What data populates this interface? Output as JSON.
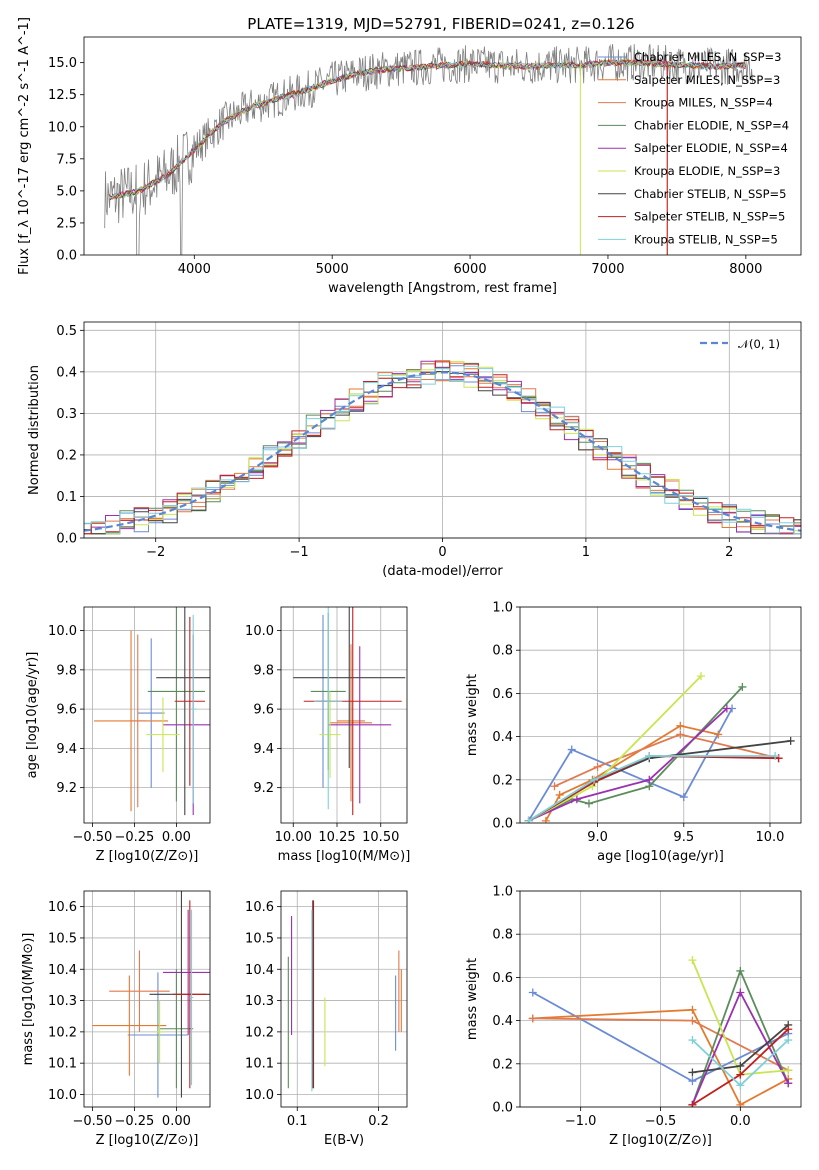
{
  "figure": {
    "title": "PLATE=1319, MJD=52791, FIBERID=0241, z=0.126"
  },
  "series": [
    {
      "name": "Chabrier MILES, N_SSP=3",
      "color": "#6c8bd5"
    },
    {
      "name": "Salpeter MILES, N_SSP=3",
      "color": "#e47a30"
    },
    {
      "name": "Kroupa MILES, N_SSP=4",
      "color": "#e07a4f"
    },
    {
      "name": "Chabrier ELODIE, N_SSP=4",
      "color": "#5b8c5a"
    },
    {
      "name": "Salpeter ELODIE, N_SSP=4",
      "color": "#9b30b0"
    },
    {
      "name": "Kroupa ELODIE, N_SSP=3",
      "color": "#c8e650"
    },
    {
      "name": "Chabrier STELIB, N_SSP=5",
      "color": "#444444"
    },
    {
      "name": "Salpeter STELIB, N_SSP=5",
      "color": "#c02020"
    },
    {
      "name": "Kroupa STELIB, N_SSP=5",
      "color": "#7fd0d8"
    }
  ],
  "chart_data": [
    {
      "id": "spectrum",
      "type": "line",
      "title": "PLATE=1319, MJD=52791, FIBERID=0241, z=0.126",
      "xlabel": "wavelength [Angstrom, rest frame]",
      "ylabel": "Flux [f_λ 10^-17 erg cm^-2 s^-1 A^-1]",
      "xlim": [
        3200,
        8400
      ],
      "ylim": [
        0,
        17
      ],
      "xticks": [
        "4000",
        "5000",
        "6000",
        "7000",
        "8000"
      ],
      "yticks": [
        "0.0",
        "2.5",
        "5.0",
        "7.5",
        "10.0",
        "12.5",
        "15.0"
      ],
      "legend": {
        "placement": "top-right",
        "entries": [
          "Chabrier MILES, N_SSP=3",
          "Salpeter MILES, N_SSP=3",
          "Kroupa MILES, N_SSP=4",
          "Chabrier ELODIE, N_SSP=4",
          "Salpeter ELODIE, N_SSP=4",
          "Kroupa ELODIE, N_SSP=3",
          "Chabrier STELIB, N_SSP=5",
          "Salpeter STELIB, N_SSP=5",
          "Kroupa STELIB, N_SSP=5"
        ]
      },
      "data_x": [
        3400,
        3600,
        3800,
        4000,
        4200,
        4400,
        4600,
        4800,
        5000,
        5200,
        5400,
        5600,
        5800,
        6000,
        6200,
        6400,
        6600,
        6800,
        7000,
        7200,
        7400,
        7600,
        7800,
        8000
      ],
      "model_y": [
        4.5,
        5.0,
        6.2,
        8.2,
        10.3,
        11.5,
        12.2,
        12.8,
        13.6,
        14.2,
        14.5,
        14.6,
        14.8,
        14.9,
        14.8,
        14.7,
        14.8,
        14.8,
        15.0,
        15.0,
        14.9,
        14.8,
        14.7,
        14.8
      ],
      "data_noise_amplitude": 1.5
    },
    {
      "id": "residual-histogram",
      "type": "histogram",
      "xlabel": "(data-model)/error",
      "ylabel": "Normed distribution",
      "xlim": [
        -2.5,
        2.5
      ],
      "ylim": [
        0,
        0.52
      ],
      "xticks": [
        "−2",
        "−1",
        "0",
        "1",
        "2"
      ],
      "yticks": [
        "0.0",
        "0.1",
        "0.2",
        "0.3",
        "0.4",
        "0.5"
      ],
      "grid": true,
      "legend": {
        "placement": "top-right",
        "entries": [
          "𝒩(0, 1)"
        ]
      },
      "bin_width": 0.1,
      "reference_curve": "normal(0,1)"
    },
    {
      "id": "age-vs-Z",
      "type": "errorbar",
      "xlabel": "Z [log10(Z/Z⊙)]",
      "ylabel": "age [log10(age/yr)]",
      "xlim": [
        -0.55,
        0.2
      ],
      "ylim": [
        9.02,
        10.12
      ],
      "xticks": [
        "−0.50",
        "−0.25",
        "0.00"
      ],
      "yticks": [
        "9.2",
        "9.4",
        "9.6",
        "9.8",
        "10.0"
      ],
      "grid": true,
      "points": [
        {
          "x": -0.15,
          "y": 9.58,
          "xerr": 0.08,
          "yerr": 0.38
        },
        {
          "x": -0.27,
          "y": 9.54,
          "xerr": 0.22,
          "yerr": 0.46
        },
        {
          "x": -0.23,
          "y": 9.54,
          "xerr": 0.05,
          "yerr": 0.44
        },
        {
          "x": 0.0,
          "y": 9.69,
          "xerr": 0.17,
          "yerr": 0.56
        },
        {
          "x": 0.1,
          "y": 9.52,
          "xerr": 0.18,
          "yerr": 0.46
        },
        {
          "x": -0.08,
          "y": 9.47,
          "xerr": 0.1,
          "yerr": 0.19
        },
        {
          "x": 0.05,
          "y": 9.76,
          "xerr": 0.17,
          "yerr": 0.7
        },
        {
          "x": 0.08,
          "y": 9.64,
          "xerr": 0.09,
          "yerr": 0.43
        },
        {
          "x": 0.1,
          "y": 9.6,
          "xerr": 0.02,
          "yerr": 0.48
        }
      ]
    },
    {
      "id": "age-vs-mass",
      "type": "errorbar",
      "xlabel": "mass [log10(M/M⊙)]",
      "ylabel": "",
      "xlim": [
        9.93,
        10.65
      ],
      "ylim": [
        9.02,
        10.12
      ],
      "xticks": [
        "10.00",
        "10.25",
        "10.50"
      ],
      "yticks": [
        "9.2",
        "9.4",
        "9.6",
        "9.8",
        "10.0"
      ],
      "grid": true,
      "points": [
        {
          "x": 10.17,
          "y": 9.64,
          "xerr": 0.04,
          "yerr": 0.44
        },
        {
          "x": 10.33,
          "y": 9.54,
          "xerr": 0.08,
          "yerr": 0.36
        },
        {
          "x": 10.33,
          "y": 9.53,
          "xerr": 0.12,
          "yerr": 0.4
        },
        {
          "x": 10.2,
          "y": 9.69,
          "xerr": 0.1,
          "yerr": 0.4
        },
        {
          "x": 10.38,
          "y": 9.52,
          "xerr": 0.18,
          "yerr": 0.4
        },
        {
          "x": 10.21,
          "y": 9.47,
          "xerr": 0.06,
          "yerr": 0.22
        },
        {
          "x": 10.32,
          "y": 9.76,
          "xerr": 0.32,
          "yerr": 0.46
        },
        {
          "x": 10.34,
          "y": 9.64,
          "xerr": 0.28,
          "yerr": 0.58
        },
        {
          "x": 10.2,
          "y": 9.64,
          "xerr": 0.08,
          "yerr": 0.55
        }
      ]
    },
    {
      "id": "mass-weight-vs-age",
      "type": "line",
      "xlabel": "age [log10(age/yr)]",
      "ylabel": "mass weight",
      "xlim": [
        8.55,
        10.18
      ],
      "ylim": [
        0,
        1
      ],
      "xticks": [
        "9.0",
        "9.5",
        "10.0"
      ],
      "yticks": [
        "0.0",
        "0.2",
        "0.4",
        "0.6",
        "0.8",
        "1.0"
      ],
      "grid": true,
      "series": [
        {
          "x": [
            8.6,
            8.85,
            9.5,
            9.78
          ],
          "y": [
            0.01,
            0.34,
            0.12,
            0.53
          ]
        },
        {
          "x": [
            8.7,
            8.78,
            8.97,
            9.48,
            9.7
          ],
          "y": [
            0.01,
            0.13,
            0.2,
            0.45,
            0.41
          ]
        },
        {
          "x": [
            8.75,
            9.0,
            9.48,
            10.05
          ],
          "y": [
            0.17,
            0.26,
            0.41,
            0.3
          ]
        },
        {
          "x": [
            8.6,
            8.85,
            8.95,
            9.3,
            9.84
          ],
          "y": [
            0.01,
            0.11,
            0.09,
            0.17,
            0.63
          ]
        },
        {
          "x": [
            8.6,
            8.88,
            9.3,
            9.75
          ],
          "y": [
            0.01,
            0.11,
            0.2,
            0.53
          ]
        },
        {
          "x": [
            8.6,
            8.97,
            9.6
          ],
          "y": [
            0.01,
            0.17,
            0.68
          ]
        },
        {
          "x": [
            8.6,
            8.98,
            9.3,
            10.12
          ],
          "y": [
            0.01,
            0.19,
            0.3,
            0.38
          ]
        },
        {
          "x": [
            8.6,
            8.98,
            9.3,
            10.05
          ],
          "y": [
            0.01,
            0.19,
            0.31,
            0.3
          ]
        },
        {
          "x": [
            8.6,
            8.98,
            9.3,
            10.03
          ],
          "y": [
            0.01,
            0.2,
            0.31,
            0.31
          ]
        }
      ]
    },
    {
      "id": "mass-vs-Z",
      "type": "errorbar",
      "xlabel": "Z [log10(Z/Z⊙)]",
      "ylabel": "mass [log10(M/M⊙)]",
      "xlim": [
        -0.55,
        0.2
      ],
      "ylim": [
        9.96,
        10.65
      ],
      "xticks": [
        "−0.50",
        "−0.25",
        "0.00"
      ],
      "yticks": [
        "10.0",
        "10.1",
        "10.2",
        "10.3",
        "10.4",
        "10.5",
        "10.6"
      ],
      "grid": true,
      "points": [
        {
          "x": -0.11,
          "y": 10.19,
          "xerr": 0.18,
          "yerr": 0.2
        },
        {
          "x": -0.28,
          "y": 10.22,
          "xerr": 0.22,
          "yerr": 0.16
        },
        {
          "x": -0.22,
          "y": 10.33,
          "xerr": 0.18,
          "yerr": 0.13
        },
        {
          "x": 0.0,
          "y": 10.21,
          "xerr": 0.1,
          "yerr": 0.19
        },
        {
          "x": 0.07,
          "y": 10.39,
          "xerr": 0.15,
          "yerr": 0.2
        },
        {
          "x": -0.1,
          "y": 10.2,
          "xerr": 0.03,
          "yerr": 0.1
        },
        {
          "x": 0.03,
          "y": 10.32,
          "xerr": 0.19,
          "yerr": 0.33
        },
        {
          "x": 0.08,
          "y": 10.32,
          "xerr": 0.1,
          "yerr": 0.3
        },
        {
          "x": 0.09,
          "y": 10.31,
          "xerr": 0.01,
          "yerr": 0.28
        }
      ]
    },
    {
      "id": "mass-vs-EBV",
      "type": "errorbar",
      "xlabel": "E(B-V)",
      "ylabel": "",
      "xlim": [
        0.08,
        0.235
      ],
      "ylim": [
        9.96,
        10.65
      ],
      "xticks": [
        "0.1",
        "0.2"
      ],
      "yticks": [
        "10.0",
        "10.1",
        "10.2",
        "10.3",
        "10.4",
        "10.5",
        "10.6"
      ],
      "grid": true,
      "points": [
        {
          "x": 0.221,
          "y": 10.26,
          "xerr": 0,
          "yerr": 0.12
        },
        {
          "x": 0.228,
          "y": 10.3,
          "xerr": 0,
          "yerr": 0.1
        },
        {
          "x": 0.225,
          "y": 10.33,
          "xerr": 0,
          "yerr": 0.13
        },
        {
          "x": 0.089,
          "y": 10.23,
          "xerr": 0,
          "yerr": 0.21
        },
        {
          "x": 0.093,
          "y": 10.38,
          "xerr": 0,
          "yerr": 0.19
        },
        {
          "x": 0.134,
          "y": 10.2,
          "xerr": 0,
          "yerr": 0.11
        },
        {
          "x": 0.12,
          "y": 10.32,
          "xerr": 0,
          "yerr": 0.3
        },
        {
          "x": 0.119,
          "y": 10.32,
          "xerr": 0,
          "yerr": 0.3
        },
        {
          "x": 0.118,
          "y": 10.3,
          "xerr": 0,
          "yerr": 0.29
        }
      ]
    },
    {
      "id": "mass-weight-vs-Z",
      "type": "line",
      "xlabel": "Z [log10(Z/Z⊙)]",
      "ylabel": "mass weight",
      "xlim": [
        -1.38,
        0.38
      ],
      "ylim": [
        0,
        1
      ],
      "xticks": [
        "−1.0",
        "−0.5",
        "0.0"
      ],
      "yticks": [
        "0.0",
        "0.2",
        "0.4",
        "0.6",
        "0.8",
        "1.0"
      ],
      "grid": true,
      "series": [
        {
          "x": [
            -1.3,
            -0.3,
            0.3
          ],
          "y": [
            0.53,
            0.12,
            0.34
          ]
        },
        {
          "x": [
            -1.3,
            -0.3,
            0.0,
            0.3
          ],
          "y": [
            0.41,
            0.45,
            0.01,
            0.13
          ]
        },
        {
          "x": [
            -1.3,
            -0.3,
            0.3
          ],
          "y": [
            0.41,
            0.4,
            0.17
          ]
        },
        {
          "x": [
            -0.3,
            0.0,
            0.3
          ],
          "y": [
            0.01,
            0.63,
            0.11
          ]
        },
        {
          "x": [
            -0.3,
            0.0,
            0.3
          ],
          "y": [
            0.01,
            0.53,
            0.11
          ]
        },
        {
          "x": [
            -0.3,
            0.0,
            0.3
          ],
          "y": [
            0.68,
            0.15,
            0.17
          ]
        },
        {
          "x": [
            -0.3,
            0.0,
            0.3
          ],
          "y": [
            0.16,
            0.19,
            0.38
          ]
        },
        {
          "x": [
            -0.3,
            0.0,
            0.3
          ],
          "y": [
            0.01,
            0.15,
            0.36
          ]
        },
        {
          "x": [
            -0.3,
            0.0,
            0.3
          ],
          "y": [
            0.31,
            0.1,
            0.31
          ]
        }
      ]
    }
  ]
}
